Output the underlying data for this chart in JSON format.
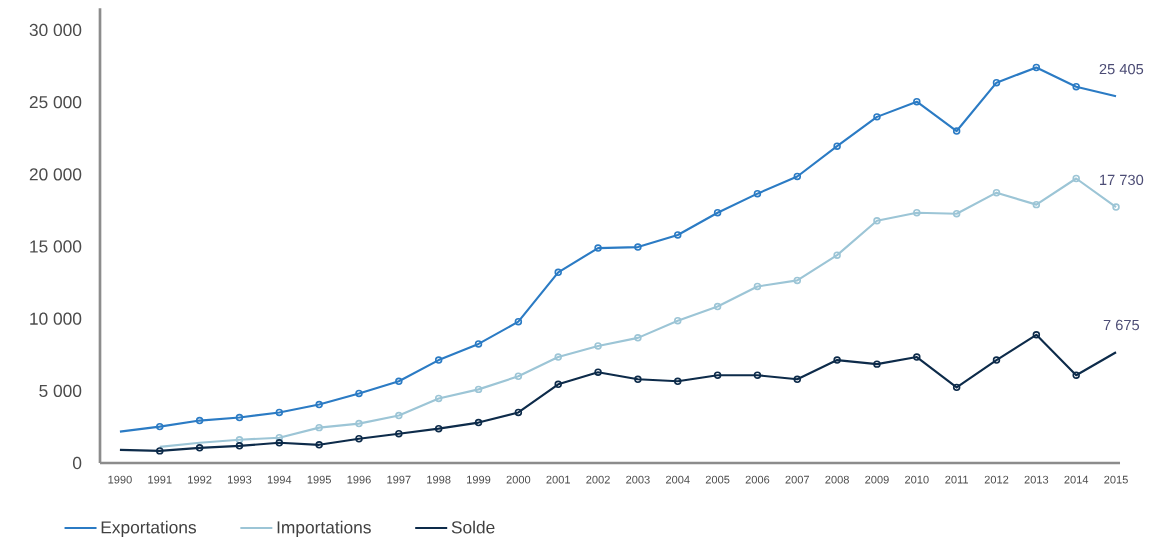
{
  "chart_data": {
    "type": "line",
    "x": [
      1990,
      1991,
      1992,
      1993,
      1994,
      1995,
      1996,
      1997,
      1998,
      1999,
      2000,
      2001,
      2002,
      2003,
      2004,
      2005,
      2006,
      2007,
      2008,
      2009,
      2010,
      2011,
      2012,
      2013,
      2014,
      2015
    ],
    "series": [
      {
        "name": "Exportations",
        "color": "#2b7bc4",
        "values": [
          2170,
          2520,
          2940,
          3150,
          3500,
          4050,
          4820,
          5660,
          7130,
          8250,
          9790,
          13210,
          14890,
          14960,
          15800,
          17340,
          18660,
          19850,
          21950,
          23980,
          25030,
          23000,
          26350,
          27400,
          26070,
          25405
        ],
        "value_labels": [
          null,
          null,
          null,
          null,
          null,
          null,
          null,
          null,
          null,
          null,
          null,
          null,
          null,
          null,
          null,
          null,
          null,
          null,
          null,
          null,
          null,
          null,
          null,
          null,
          null,
          "25 405"
        ]
      },
      {
        "name": "Importations",
        "color": "#9cc5d6",
        "values": [
          null,
          1120,
          1400,
          1610,
          1750,
          2450,
          2730,
          3290,
          4470,
          5100,
          6010,
          7340,
          8110,
          8670,
          9860,
          10840,
          12230,
          12650,
          14400,
          16780,
          17340,
          17270,
          18730,
          17900,
          19710,
          17730
        ],
        "value_labels": [
          null,
          null,
          null,
          null,
          null,
          null,
          null,
          null,
          null,
          null,
          null,
          null,
          null,
          null,
          null,
          null,
          null,
          null,
          null,
          null,
          null,
          null,
          null,
          null,
          null,
          "17 730"
        ]
      },
      {
        "name": "Solde",
        "color": "#0d2b4a",
        "values": [
          910,
          840,
          1050,
          1190,
          1400,
          1260,
          1680,
          2030,
          2380,
          2800,
          3500,
          5450,
          6290,
          5800,
          5660,
          6080,
          6080,
          5800,
          7130,
          6850,
          7340,
          5240,
          7130,
          8880,
          6080,
          7675
        ],
        "value_labels": [
          null,
          null,
          null,
          null,
          null,
          null,
          null,
          null,
          null,
          null,
          null,
          null,
          null,
          null,
          null,
          null,
          null,
          null,
          null,
          null,
          null,
          null,
          null,
          null,
          null,
          "7 675"
        ]
      }
    ],
    "xlim": [
      1989.5,
      2015.1
    ],
    "ylim": [
      0,
      31500
    ],
    "xticks": [
      1990,
      1991,
      1992,
      1993,
      1994,
      1995,
      1996,
      1997,
      1998,
      1999,
      2000,
      2001,
      2002,
      2003,
      2004,
      2005,
      2006,
      2007,
      2008,
      2009,
      2010,
      2011,
      2012,
      2013,
      2014,
      2015
    ],
    "yticks": [
      0,
      {
        "value": 5000,
        "label": "5 000"
      },
      {
        "value": 10000,
        "label": "10 000"
      },
      {
        "value": 15000,
        "label": "15 000"
      },
      {
        "value": 20000,
        "label": "20 000"
      },
      {
        "value": 25000,
        "label": "25 000"
      },
      {
        "value": 30000,
        "label": "30 000"
      }
    ],
    "grid": false,
    "legend": "bottom",
    "marker": "circle",
    "line_style": "solid"
  }
}
